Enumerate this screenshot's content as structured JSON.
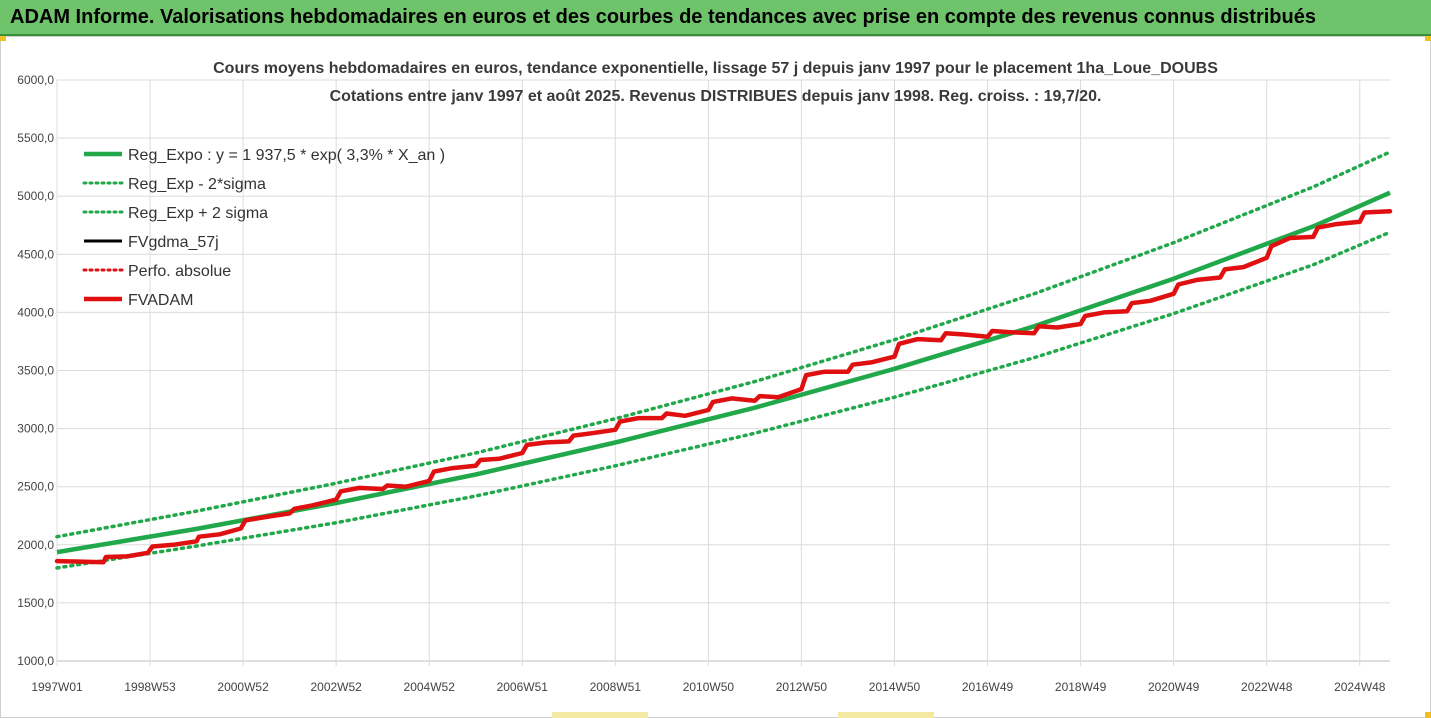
{
  "banner": {
    "text": "ADAM Informe. Valorisations hebdomadaires en euros et des courbes de tendances avec prise en compte des revenus connus distribués"
  },
  "colors": {
    "banner_bg": "#6fc36b",
    "reg_expo": "#21a84a",
    "fv_adam": "#e01010",
    "fvgdma": "#000000",
    "perfo": "#e01010",
    "grid": "#dcdcdc"
  },
  "chart_data": {
    "type": "line",
    "title": "Cours moyens hebdomadaires en euros, tendance exponentielle, lissage 57 j depuis janv 1997 pour le placement 1ha_Loue_DOUBS",
    "subtitle": "Cotations entre janv 1997 et août 2025. Revenus DISTRIBUES depuis janv 1998. Reg. croiss. : 19,7/20.",
    "xlim": [
      1997.0,
      2025.65
    ],
    "ylim": [
      1000,
      6000
    ],
    "y_ticks": [
      "1000,0",
      "1500,0",
      "2000,0",
      "2500,0",
      "3000,0",
      "3500,0",
      "4000,0",
      "4500,0",
      "5000,0",
      "5500,0",
      "6000,0"
    ],
    "y_tick_values": [
      1000,
      1500,
      2000,
      2500,
      3000,
      3500,
      4000,
      4500,
      5000,
      5500,
      6000
    ],
    "x_ticks": [
      "1997W01",
      "1998W53",
      "2000W52",
      "2002W52",
      "2004W52",
      "2006W51",
      "2008W51",
      "2010W50",
      "2012W50",
      "2014W50",
      "2016W49",
      "2018W49",
      "2020W49",
      "2022W48",
      "2024W48"
    ],
    "x_tick_values": [
      1997.0,
      1999.0,
      2001.0,
      2003.0,
      2005.0,
      2007.0,
      2009.0,
      2011.0,
      2013.0,
      2015.0,
      2017.0,
      2019.0,
      2021.0,
      2023.0,
      2025.0
    ],
    "grid": true,
    "legend_position": "top-left",
    "legend": [
      {
        "name": "Reg_Expo : y = 1 937,5 * exp( 3,3% *  X_an )",
        "style": "solid-thick",
        "color": "#21a84a"
      },
      {
        "name": "Reg_Exp - 2*sigma",
        "style": "dotted",
        "color": "#21a84a"
      },
      {
        "name": "Reg_Exp + 2 sigma",
        "style": "dotted",
        "color": "#21a84a"
      },
      {
        "name": "FVgdma_57j",
        "style": "solid",
        "color": "#000000"
      },
      {
        "name": "Perfo. absolue",
        "style": "dotted",
        "color": "#e01010"
      },
      {
        "name": "FVADAM",
        "style": "solid-thick",
        "color": "#e01010"
      }
    ],
    "series": [
      {
        "name": "Reg_Expo : y = 1 937,5 * exp( 3,3% *  X_an )",
        "x": [
          1997.0,
          2000.0,
          2003.0,
          2006.0,
          2009.0,
          2012.0,
          2015.0,
          2018.0,
          2021.0,
          2024.0,
          2025.65
        ],
        "values": [
          1937.5,
          2137,
          2360,
          2605,
          2880,
          3180,
          3515,
          3880,
          4290,
          4740,
          5030
        ]
      },
      {
        "name": "Reg_Exp - 2*sigma",
        "x": [
          1997.0,
          2000.0,
          2003.0,
          2006.0,
          2009.0,
          2012.0,
          2015.0,
          2018.0,
          2021.0,
          2024.0,
          2025.65
        ],
        "values": [
          1800,
          1990,
          2190,
          2420,
          2680,
          2960,
          3270,
          3610,
          3990,
          4410,
          4690
        ]
      },
      {
        "name": "Reg_Exp + 2 sigma",
        "x": [
          1997.0,
          2000.0,
          2003.0,
          2006.0,
          2009.0,
          2012.0,
          2015.0,
          2018.0,
          2021.0,
          2024.0,
          2025.65
        ],
        "values": [
          2070,
          2290,
          2530,
          2790,
          3085,
          3405,
          3765,
          4160,
          4600,
          5080,
          5380
        ]
      },
      {
        "name": "FVADAM",
        "x": [
          1997.0,
          1997.5,
          1998.0,
          1998.05,
          1998.5,
          1998.95,
          1999.05,
          1999.5,
          2000.0,
          2000.05,
          2000.5,
          2000.95,
          2001.05,
          2001.5,
          2002.0,
          2002.1,
          2002.5,
          2003.0,
          2003.1,
          2003.5,
          2004.0,
          2004.1,
          2004.5,
          2005.0,
          2005.1,
          2005.5,
          2006.0,
          2006.1,
          2006.5,
          2007.0,
          2007.1,
          2007.5,
          2008.0,
          2008.1,
          2008.5,
          2009.0,
          2009.1,
          2009.5,
          2010.0,
          2010.1,
          2010.5,
          2011.0,
          2011.1,
          2011.5,
          2012.0,
          2012.1,
          2012.5,
          2013.0,
          2013.1,
          2013.5,
          2014.0,
          2014.1,
          2014.5,
          2015.0,
          2015.1,
          2015.5,
          2016.0,
          2016.1,
          2016.5,
          2017.0,
          2017.1,
          2017.5,
          2018.0,
          2018.1,
          2018.5,
          2019.0,
          2019.1,
          2019.5,
          2020.0,
          2020.1,
          2020.5,
          2021.0,
          2021.1,
          2021.5,
          2022.0,
          2022.1,
          2022.5,
          2023.0,
          2023.1,
          2023.5,
          2024.0,
          2024.1,
          2024.5,
          2025.0,
          2025.1,
          2025.65
        ],
        "values": [
          1860,
          1855,
          1850,
          1895,
          1900,
          1930,
          1985,
          2000,
          2030,
          2070,
          2090,
          2140,
          2210,
          2240,
          2270,
          2310,
          2340,
          2390,
          2460,
          2490,
          2480,
          2510,
          2500,
          2550,
          2630,
          2660,
          2680,
          2730,
          2740,
          2790,
          2860,
          2880,
          2890,
          2940,
          2960,
          2990,
          3060,
          3090,
          3090,
          3130,
          3110,
          3160,
          3230,
          3260,
          3240,
          3280,
          3270,
          3340,
          3460,
          3490,
          3490,
          3550,
          3570,
          3620,
          3730,
          3770,
          3760,
          3820,
          3810,
          3790,
          3840,
          3830,
          3820,
          3880,
          3870,
          3900,
          3970,
          4000,
          4010,
          4080,
          4100,
          4160,
          4240,
          4280,
          4300,
          4370,
          4390,
          4470,
          4570,
          4640,
          4650,
          4730,
          4760,
          4780,
          4860,
          4870
        ]
      }
    ]
  }
}
